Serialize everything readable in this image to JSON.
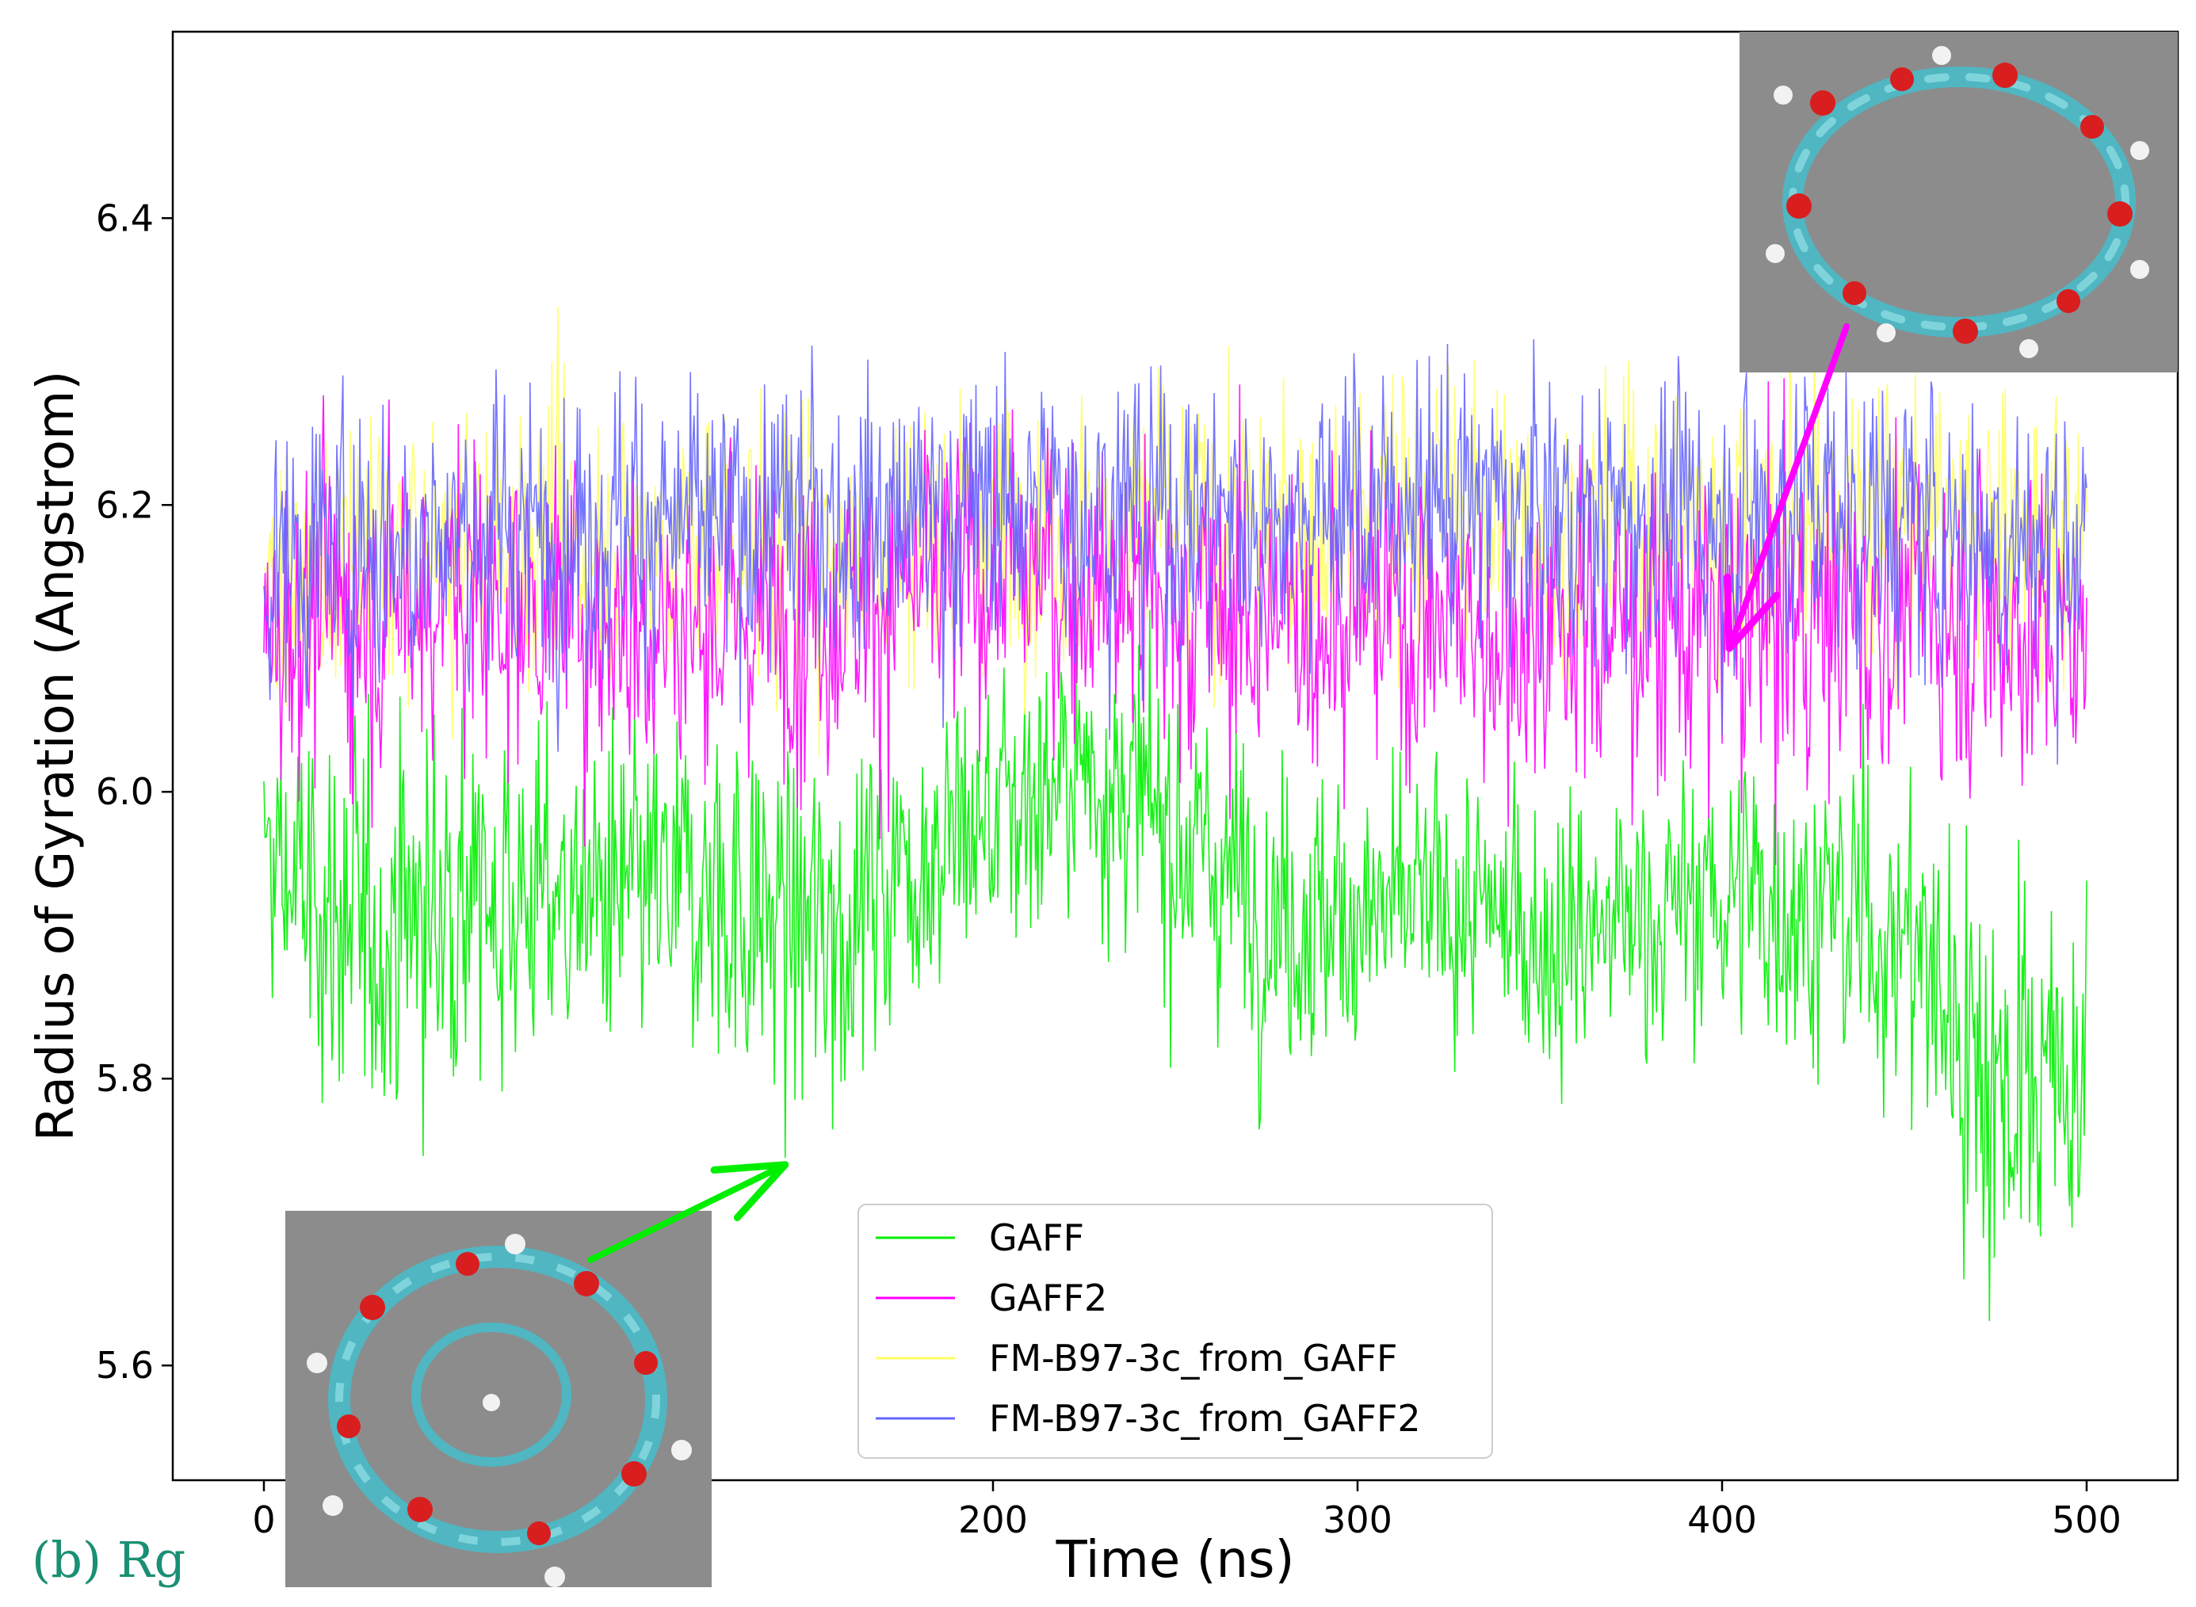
{
  "chart_data": {
    "type": "line",
    "title": "",
    "xlabel": "Time (ns)",
    "ylabel": "Radius of Gyration (Angstrom)",
    "xlim": [
      -25,
      525
    ],
    "ylim": [
      5.52,
      6.53
    ],
    "xticks": [
      0,
      100,
      200,
      300,
      400,
      500
    ],
    "xtick_labels": [
      "0",
      "100",
      "200",
      "300",
      "400",
      "500"
    ],
    "yticks": [
      5.6,
      5.8,
      6.0,
      6.2,
      6.4
    ],
    "ytick_labels": [
      "5.6",
      "5.8",
      "6.0",
      "6.2",
      "6.4"
    ],
    "x": [
      0,
      25,
      50,
      75,
      100,
      125,
      150,
      175,
      200,
      225,
      250,
      275,
      300,
      325,
      350,
      375,
      400,
      425,
      450,
      475,
      500
    ],
    "series": [
      {
        "name": "GAFF",
        "color": "#00ee00",
        "values": [
          5.95,
          5.9,
          5.92,
          5.93,
          5.92,
          5.93,
          5.9,
          5.95,
          5.98,
          6.02,
          5.97,
          5.92,
          5.91,
          5.92,
          5.9,
          5.91,
          5.93,
          5.92,
          5.9,
          5.8,
          5.8
        ],
        "spread": [
          0.15,
          0.18,
          0.17,
          0.16,
          0.15,
          0.16,
          0.19,
          0.15,
          0.14,
          0.12,
          0.14,
          0.14,
          0.13,
          0.13,
          0.13,
          0.13,
          0.14,
          0.14,
          0.16,
          0.2,
          0.2
        ]
      },
      {
        "name": "GAFF2",
        "color": "#ff00ff",
        "values": [
          6.12,
          6.13,
          6.14,
          6.13,
          6.12,
          6.12,
          6.13,
          6.14,
          6.15,
          6.15,
          6.13,
          6.12,
          6.13,
          6.12,
          6.11,
          6.12,
          6.11,
          6.12,
          6.13,
          6.12,
          6.1
        ],
        "spread": [
          0.14,
          0.16,
          0.15,
          0.15,
          0.15,
          0.16,
          0.15,
          0.15,
          0.14,
          0.14,
          0.15,
          0.15,
          0.15,
          0.15,
          0.15,
          0.15,
          0.15,
          0.15,
          0.15,
          0.15,
          0.14
        ]
      },
      {
        "name": "FM-B97-3c_from_GAFF",
        "color": "#ffff66",
        "values": [
          6.14,
          6.16,
          6.17,
          6.18,
          6.17,
          6.18,
          6.17,
          6.18,
          6.19,
          6.19,
          6.18,
          6.18,
          6.19,
          6.2,
          6.18,
          6.19,
          6.18,
          6.19,
          6.19,
          6.18,
          6.17
        ],
        "spread": [
          0.12,
          0.13,
          0.13,
          0.13,
          0.13,
          0.13,
          0.13,
          0.13,
          0.13,
          0.13,
          0.13,
          0.13,
          0.13,
          0.13,
          0.13,
          0.13,
          0.13,
          0.13,
          0.13,
          0.13,
          0.13
        ]
      },
      {
        "name": "FM-B97-3c_from_GAFF2",
        "color": "#6666ff",
        "values": [
          6.16,
          6.17,
          6.18,
          6.18,
          6.19,
          6.18,
          6.19,
          6.19,
          6.2,
          6.2,
          6.19,
          6.19,
          6.2,
          6.2,
          6.19,
          6.19,
          6.19,
          6.2,
          6.19,
          6.18,
          6.17
        ],
        "spread": [
          0.13,
          0.13,
          0.13,
          0.13,
          0.13,
          0.13,
          0.13,
          0.13,
          0.13,
          0.13,
          0.13,
          0.13,
          0.13,
          0.13,
          0.13,
          0.13,
          0.13,
          0.13,
          0.13,
          0.13,
          0.13
        ]
      }
    ],
    "legend_position": "bottom-center",
    "panel_label": "(b) Rg",
    "annotations": [
      {
        "type": "molecule-inset",
        "label": "cyclodextrin-expanded-inset",
        "placement": "top-right",
        "arrow_color": "#ff00ff",
        "arrow_points_to": {
          "x": 402,
          "y": 6.1
        }
      },
      {
        "type": "molecule-inset",
        "label": "cyclodextrin-collapsed-inset",
        "placement": "bottom-left",
        "arrow_color": "#00ee00",
        "arrow_points_to": {
          "x": 143,
          "y": 5.74
        }
      }
    ]
  },
  "colors": {
    "panel_label": "#1a8f73",
    "inset_background": "#8c8c8c"
  }
}
